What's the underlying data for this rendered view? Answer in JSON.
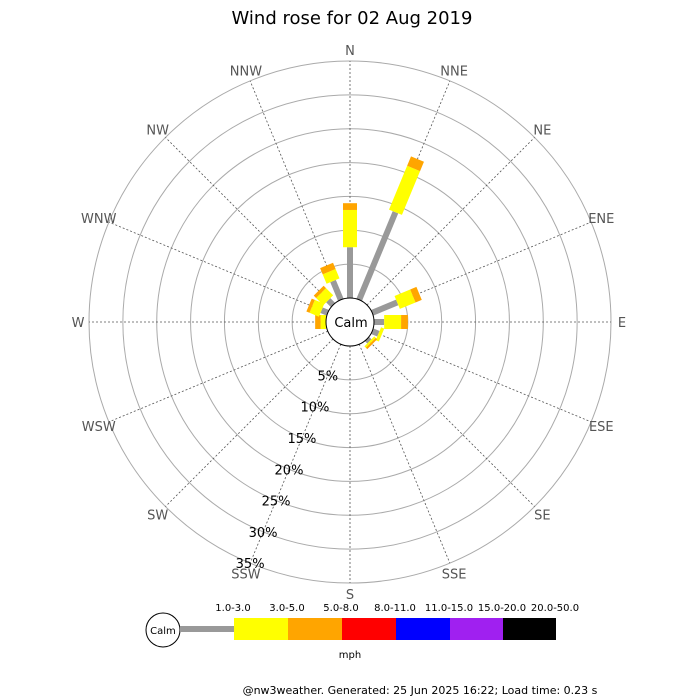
{
  "chart_data": {
    "type": "wind-rose",
    "title": "Wind rose for 02 Aug 2019",
    "calm_label": "Calm",
    "unit": "mph",
    "footer": "@nw3weather. Generated: 25 Jun 2025 16:22; Load time: 0.23 s",
    "directions": [
      "N",
      "NNE",
      "NE",
      "ENE",
      "E",
      "ESE",
      "SE",
      "SSE",
      "S",
      "SSW",
      "SW",
      "WSW",
      "W",
      "WNW",
      "NW",
      "NNW"
    ],
    "ring_labels": [
      "5%",
      "10%",
      "15%",
      "20%",
      "25%",
      "30%",
      "35%"
    ],
    "ring_values": [
      5,
      10,
      15,
      20,
      25,
      30,
      35
    ],
    "rmax": 35,
    "legend": [
      {
        "label": "1.0-3.0",
        "color": "#999999"
      },
      {
        "label": "3.0-5.0",
        "color": "#ffff00"
      },
      {
        "label": "5.0-8.0",
        "color": "#ffa500"
      },
      {
        "label": "8.0-11.0",
        "color": "#ff0000"
      },
      {
        "label": "11.0-15.0",
        "color": "#0000ff"
      },
      {
        "label": "15.0-20.0",
        "color": "#a020f0"
      },
      {
        "label": "20.0-50.0",
        "color": "#000000"
      }
    ],
    "series": [
      {
        "label": "1.0-3.0",
        "values": [
          7.5,
          14.0,
          0,
          4.0,
          1.5,
          1.0,
          0.5,
          0,
          0,
          0,
          0,
          0,
          0,
          1.0,
          1.0,
          3.0
        ]
      },
      {
        "label": "3.0-5.0",
        "values": [
          5.5,
          7.0,
          0,
          2.5,
          2.5,
          0.5,
          0.3,
          0,
          0,
          0,
          0,
          0,
          0.8,
          1.5,
          1.5,
          1.5
        ]
      },
      {
        "label": "5.0-8.0",
        "values": [
          1.0,
          1.5,
          0,
          1.0,
          1.0,
          0,
          0.3,
          0,
          0,
          0,
          0,
          0,
          0.8,
          0.5,
          0.5,
          1.0
        ]
      },
      {
        "label": "8.0-11.0",
        "values": [
          0,
          0,
          0,
          0,
          0,
          0,
          0,
          0,
          0,
          0,
          0,
          0,
          0,
          0,
          0,
          0
        ]
      },
      {
        "label": "11.0-15.0",
        "values": [
          0,
          0,
          0,
          0,
          0,
          0,
          0,
          0,
          0,
          0,
          0,
          0,
          0,
          0,
          0,
          0
        ]
      },
      {
        "label": "15.0-20.0",
        "values": [
          0,
          0,
          0,
          0,
          0,
          0,
          0,
          0,
          0,
          0,
          0,
          0,
          0,
          0,
          0,
          0
        ]
      },
      {
        "label": "20.0-50.0",
        "values": [
          0,
          0,
          0,
          0,
          0,
          0,
          0,
          0,
          0,
          0,
          0,
          0,
          0,
          0,
          0,
          0
        ]
      }
    ]
  }
}
